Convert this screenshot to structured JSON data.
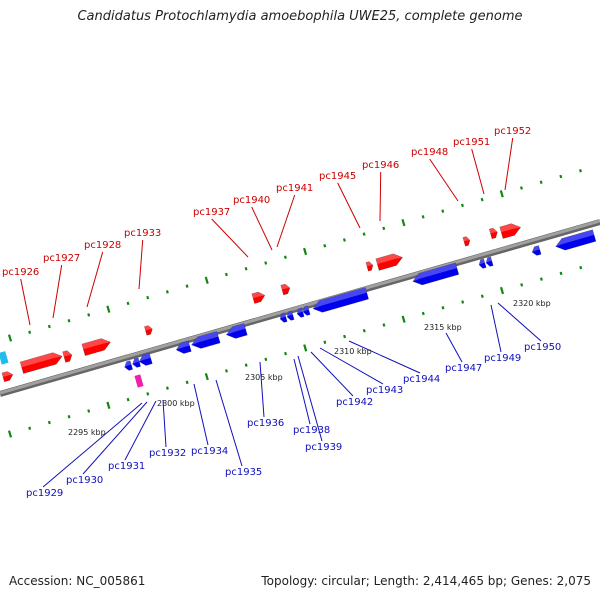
{
  "title": "Candidatus Protochlamydia amoebophila UWE25, complete genome",
  "footer": {
    "accession": "Accession: NC_005861",
    "summary": "Topology: circular; Length: 2,414,465 bp; Genes: 2,075"
  },
  "colors": {
    "forward_gene": "#ff0000",
    "reverse_gene": "#0000ee",
    "forward_label": "#cc0000",
    "reverse_label": "#1010bb",
    "tick": "#118811",
    "backbone": "#888888",
    "cyan_feature": "#22bbee",
    "magenta_feature": "#ee22aa"
  },
  "scale_labels": [
    "2295 kbp",
    "2300 kbp",
    "2305 kbp",
    "2310 kbp",
    "2315 kbp",
    "2320 kbp"
  ],
  "forward_genes": [
    "pc1926",
    "pc1927",
    "pc1928",
    "pc1933",
    "pc1937",
    "pc1940",
    "pc1941",
    "pc1945",
    "pc1946",
    "pc1948",
    "pc1951",
    "pc1952"
  ],
  "reverse_genes": [
    "pc1929",
    "pc1930",
    "pc1931",
    "pc1932",
    "pc1934",
    "pc1935",
    "pc1936",
    "pc1938",
    "pc1939",
    "pc1942",
    "pc1943",
    "pc1944",
    "pc1947",
    "pc1949",
    "pc1950"
  ]
}
